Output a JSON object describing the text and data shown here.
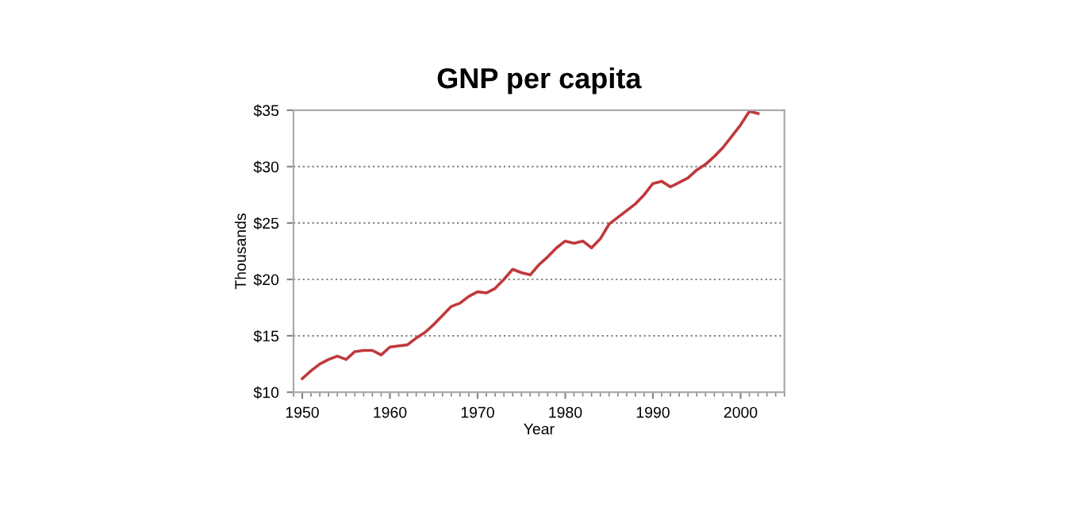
{
  "chart_data": {
    "type": "line",
    "title": "GNP per capita",
    "xlabel": "Year",
    "ylabel": "Thousands",
    "x": [
      1950,
      1951,
      1952,
      1953,
      1954,
      1955,
      1956,
      1957,
      1958,
      1959,
      1960,
      1961,
      1962,
      1963,
      1964,
      1965,
      1966,
      1967,
      1968,
      1969,
      1970,
      1971,
      1972,
      1973,
      1974,
      1975,
      1976,
      1977,
      1978,
      1979,
      1980,
      1981,
      1982,
      1983,
      1984,
      1985,
      1986,
      1987,
      1988,
      1989,
      1990,
      1991,
      1992,
      1993,
      1994,
      1995,
      1996,
      1997,
      1998,
      1999,
      2000,
      2001,
      2002
    ],
    "series": [
      {
        "color": "#c0393b",
        "values": [
          11.2,
          11.9,
          12.5,
          12.9,
          13.2,
          12.9,
          13.6,
          13.7,
          13.7,
          13.3,
          14.0,
          14.1,
          14.2,
          14.8,
          15.3,
          16.0,
          16.8,
          17.6,
          17.9,
          18.5,
          18.9,
          18.8,
          19.2,
          20.0,
          20.9,
          20.6,
          20.4,
          21.3,
          22.0,
          22.8,
          23.4,
          23.2,
          23.4,
          22.8,
          23.6,
          24.9,
          25.5,
          26.1,
          26.7,
          27.5,
          28.5,
          28.7,
          28.2,
          28.6,
          29.0,
          29.7,
          30.2,
          30.9,
          31.7,
          32.7,
          33.7,
          34.9,
          34.7
        ]
      }
    ],
    "xlim": [
      1949,
      2005
    ],
    "xticks": [
      1950,
      1960,
      1970,
      1980,
      1990,
      2000
    ],
    "ylim": [
      10,
      35
    ],
    "yticks": [
      {
        "value": 10,
        "label": "$10"
      },
      {
        "value": 15,
        "label": "$15"
      },
      {
        "value": 20,
        "label": "$20"
      },
      {
        "value": 25,
        "label": "$25"
      },
      {
        "value": 30,
        "label": "$30"
      },
      {
        "value": 35,
        "label": "$35"
      }
    ],
    "grid": "y",
    "legend": false,
    "line_style": "solid"
  }
}
